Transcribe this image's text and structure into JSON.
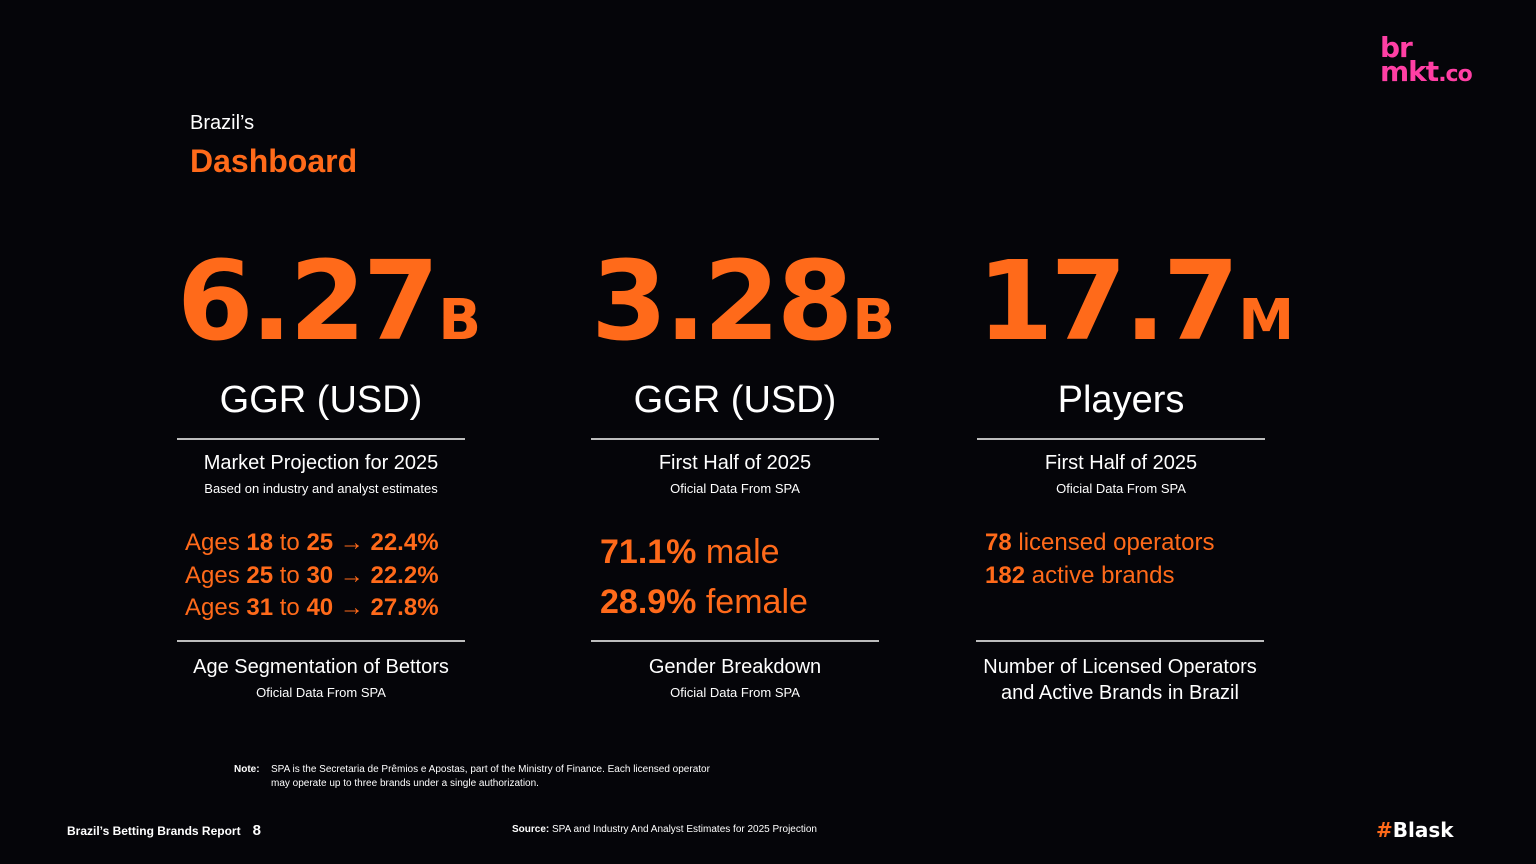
{
  "logo": {
    "line1": "br",
    "line2": "mkt",
    "line2_suffix": ".co",
    "color": "#ff3fa4"
  },
  "header": {
    "eyebrow": "Brazil’s",
    "title": "Dashboard"
  },
  "accent_color": "#ff6a1a",
  "metrics": [
    {
      "value": "6.27",
      "suffix": "B",
      "label": "GGR (USD)",
      "subtitle": "Market Projection for 2025",
      "note": "Based on industry and analyst estimates"
    },
    {
      "value": "3.28",
      "suffix": "B",
      "label": "GGR (USD)",
      "subtitle": "First Half of 2025",
      "note": "Oficial Data From SPA"
    },
    {
      "value": "17.7",
      "suffix": "M",
      "label": "Players",
      "subtitle": "First Half of 2025",
      "note": "Oficial Data From SPA"
    }
  ],
  "age_segmentation": {
    "rows": [
      {
        "prefix": "Ages ",
        "from": "18",
        "to_word": " to ",
        "to": "25",
        "arrow": " → ",
        "pct": "22.4%"
      },
      {
        "prefix": "Ages ",
        "from": "25",
        "to_word": " to ",
        "to": "30",
        "arrow": " → ",
        "pct": "22.2%"
      },
      {
        "prefix": "Ages ",
        "from": "31",
        "to_word": " to ",
        "to": "40",
        "arrow": " → ",
        "pct": "27.8%"
      }
    ],
    "caption": "Age Segmentation of Bettors",
    "source": "Oficial Data From SPA"
  },
  "gender": {
    "rows": [
      {
        "pct": "71.1%",
        "label": " male"
      },
      {
        "pct": "28.9%",
        "label": " female"
      }
    ],
    "caption": "Gender Breakdown",
    "source": "Oficial Data From SPA"
  },
  "operators": {
    "rows": [
      {
        "num": "78",
        "label": " licensed operators"
      },
      {
        "num": "182",
        "label": " active brands"
      }
    ],
    "caption_line1": "Number of Licensed Operators",
    "caption_line2": "and Active Brands in Brazil"
  },
  "note": {
    "label": "Note:",
    "text": "SPA is the Secretaria de Prêmios e Apostas, part of the Ministry of Finance. Each licensed operator may operate up to three brands under a single authorization."
  },
  "footer": {
    "report_title": "Brazil’s Betting Brands Report",
    "page": "8",
    "source_label": "Source:",
    "source_text": " SPA and Industry And Analyst Estimates for 2025 Projection",
    "brand_hash": "#",
    "brand_name": "Blask"
  }
}
